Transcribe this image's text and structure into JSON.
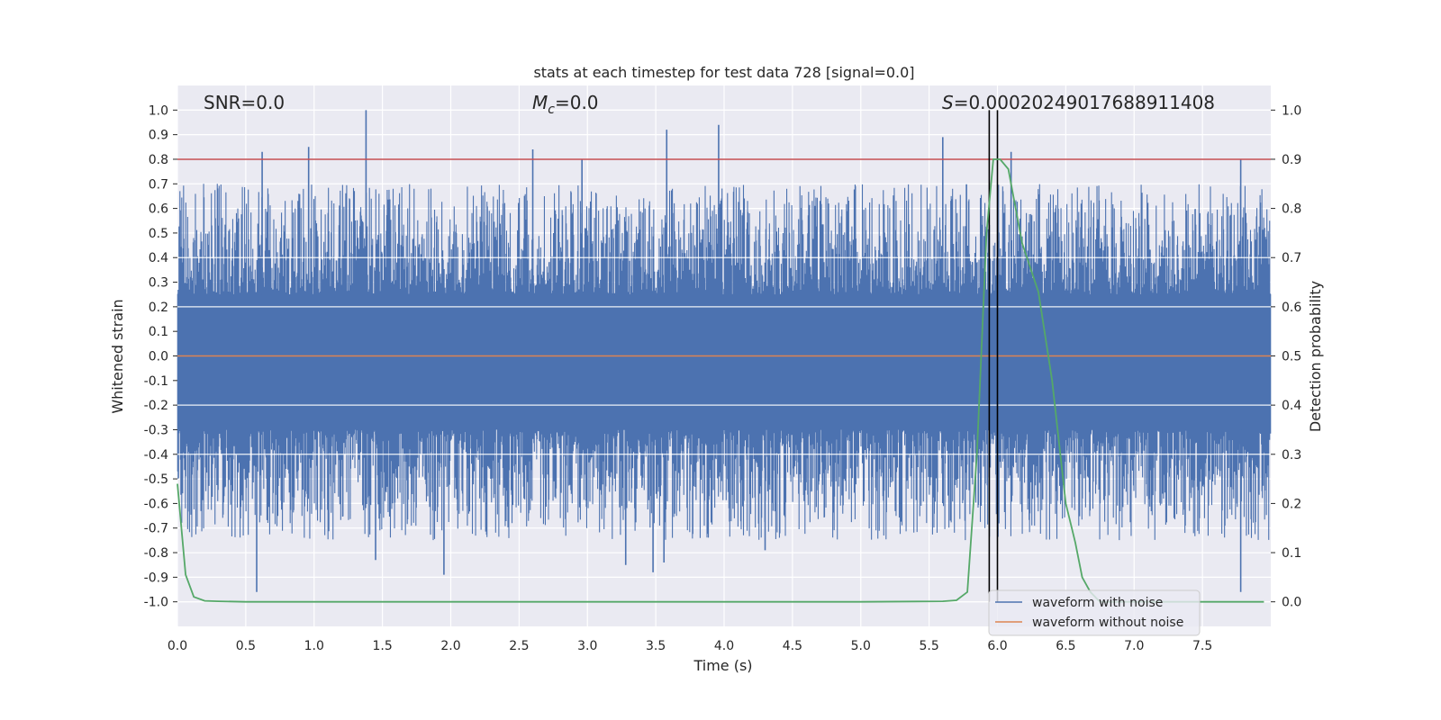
{
  "chart_data": {
    "type": "line",
    "title": "stats at each timestep for test data 728 [signal=0.0]",
    "xlabel": "Time (s)",
    "ylabel_left": "Whitened strain",
    "ylabel_right": "Detection probability",
    "xlim": [
      0.0,
      8.0
    ],
    "ylim_left": [
      -1.1,
      1.1
    ],
    "ylim_right": [
      -0.05,
      1.05
    ],
    "x_ticks": [
      "0.0",
      "0.5",
      "1.0",
      "1.5",
      "2.0",
      "2.5",
      "3.0",
      "3.5",
      "4.0",
      "4.5",
      "5.0",
      "5.5",
      "6.0",
      "6.5",
      "7.0",
      "7.5"
    ],
    "y_ticks_left": [
      "1.0",
      "0.9",
      "0.8",
      "0.7",
      "0.6",
      "0.5",
      "0.4",
      "0.3",
      "0.2",
      "0.1",
      "0.0",
      "-0.1",
      "-0.2",
      "-0.3",
      "-0.4",
      "-0.5",
      "-0.6",
      "-0.7",
      "-0.8",
      "-0.9",
      "-1.0"
    ],
    "y_ticks_right": [
      "1.0",
      "0.9",
      "0.8",
      "0.7",
      "0.6",
      "0.5",
      "0.4",
      "0.3",
      "0.2",
      "0.1",
      "0.0"
    ],
    "annotations": {
      "snr": "SNR=0.0",
      "mc_symbol": "M",
      "mc_sub": "c",
      "mc_value": "=0.0",
      "s_symbol": "S",
      "s_value": "=0.00020249017688911408"
    },
    "threshold_line": {
      "value": 0.8,
      "axis": "left",
      "color": "#c44e52"
    },
    "vertical_markers": [
      5.94,
      6.0
    ],
    "noise_envelope": {
      "color": "#4c72b0",
      "dense_band_left": [
        -0.3,
        0.25
      ],
      "typical_peak_left": [
        -0.55,
        0.55
      ],
      "max_positive_spike": {
        "t": 1.38,
        "value": 1.0
      },
      "min_negative_spike": {
        "t": 0.58,
        "value": -0.96
      },
      "notable_spikes": [
        {
          "t": 0.62,
          "value": 0.83
        },
        {
          "t": 0.96,
          "value": 0.85
        },
        {
          "t": 1.38,
          "value": 1.0
        },
        {
          "t": 2.6,
          "value": 0.84
        },
        {
          "t": 2.96,
          "value": 0.8
        },
        {
          "t": 3.58,
          "value": 0.92
        },
        {
          "t": 3.96,
          "value": 0.94
        },
        {
          "t": 5.6,
          "value": 0.89
        },
        {
          "t": 6.1,
          "value": 0.83
        },
        {
          "t": 7.78,
          "value": 0.8
        },
        {
          "t": 0.58,
          "value": -0.96
        },
        {
          "t": 1.45,
          "value": -0.83
        },
        {
          "t": 1.95,
          "value": -0.89
        },
        {
          "t": 3.28,
          "value": -0.85
        },
        {
          "t": 3.48,
          "value": -0.88
        },
        {
          "t": 3.56,
          "value": -0.84
        },
        {
          "t": 4.3,
          "value": -0.79
        },
        {
          "t": 7.78,
          "value": -0.96
        }
      ]
    },
    "series": [
      {
        "name": "waveform with noise",
        "color": "#4c72b0",
        "axis": "left",
        "kind": "dense noise"
      },
      {
        "name": "waveform without noise",
        "color": "#dd8452",
        "axis": "left",
        "x": [
          0.0,
          8.0
        ],
        "y": [
          0.0,
          0.0
        ]
      },
      {
        "name": "detection probability",
        "color": "#55a868",
        "axis": "right",
        "x": [
          0.0,
          0.06,
          0.12,
          0.2,
          0.3,
          0.5,
          1.0,
          2.0,
          3.0,
          4.0,
          5.0,
          5.6,
          5.7,
          5.78,
          5.85,
          5.92,
          5.97,
          6.02,
          6.08,
          6.18,
          6.3,
          6.4,
          6.5,
          6.57,
          6.62,
          6.68,
          6.75,
          7.0,
          7.5,
          7.95
        ],
        "y": [
          0.24,
          0.055,
          0.01,
          0.002,
          0.001,
          0.0,
          0.0,
          0.0,
          0.0,
          0.0,
          0.0,
          0.001,
          0.003,
          0.02,
          0.3,
          0.75,
          0.9,
          0.9,
          0.88,
          0.73,
          0.63,
          0.45,
          0.2,
          0.12,
          0.05,
          0.02,
          0.0,
          0.0,
          0.0,
          0.0
        ]
      }
    ],
    "legend": {
      "location": "lower-right",
      "entries": [
        "waveform with noise",
        "waveform without noise"
      ]
    }
  }
}
